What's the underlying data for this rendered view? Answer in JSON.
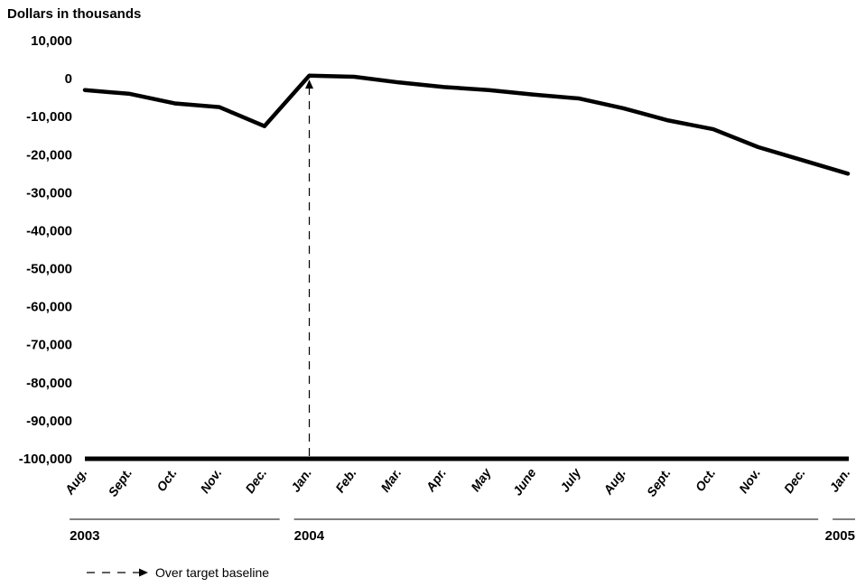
{
  "chart_data": {
    "type": "line",
    "ylabel": "Dollars in thousands",
    "ylim": [
      -100000,
      10000
    ],
    "yticks": [
      "10,000",
      "0",
      "-10,000",
      "-20,000",
      "-30,000",
      "-40,000",
      "-50,000",
      "-60,000",
      "-70,000",
      "-80,000",
      "-90,000",
      "-100,000"
    ],
    "categories": [
      "Aug.",
      "Sept.",
      "Oct.",
      "Nov.",
      "Dec.",
      "Jan.",
      "Feb.",
      "Mar.",
      "Apr.",
      "May",
      "June",
      "July",
      "Aug.",
      "Sept.",
      "Oct.",
      "Nov.",
      "Dec.",
      "Jan."
    ],
    "years": [
      {
        "label": "2003",
        "start": 0,
        "end": 4
      },
      {
        "label": "2004",
        "start": 5,
        "end": 16
      },
      {
        "label": "2005",
        "start": 17,
        "end": 17
      }
    ],
    "series": [
      {
        "values": [
          -3000,
          -4000,
          -6500,
          -7500,
          -12500,
          800,
          500,
          -1000,
          -2200,
          -3000,
          -4200,
          -5200,
          -7800,
          -11000,
          -13300,
          -18000,
          -21500,
          -25000
        ]
      }
    ],
    "annotations": [
      {
        "type": "dashed-arrow",
        "category_index": 5,
        "from_value": -100000,
        "to_value": 0
      }
    ],
    "legend": {
      "label": "Over target baseline",
      "placement": "bottom-left"
    },
    "grid": false
  }
}
